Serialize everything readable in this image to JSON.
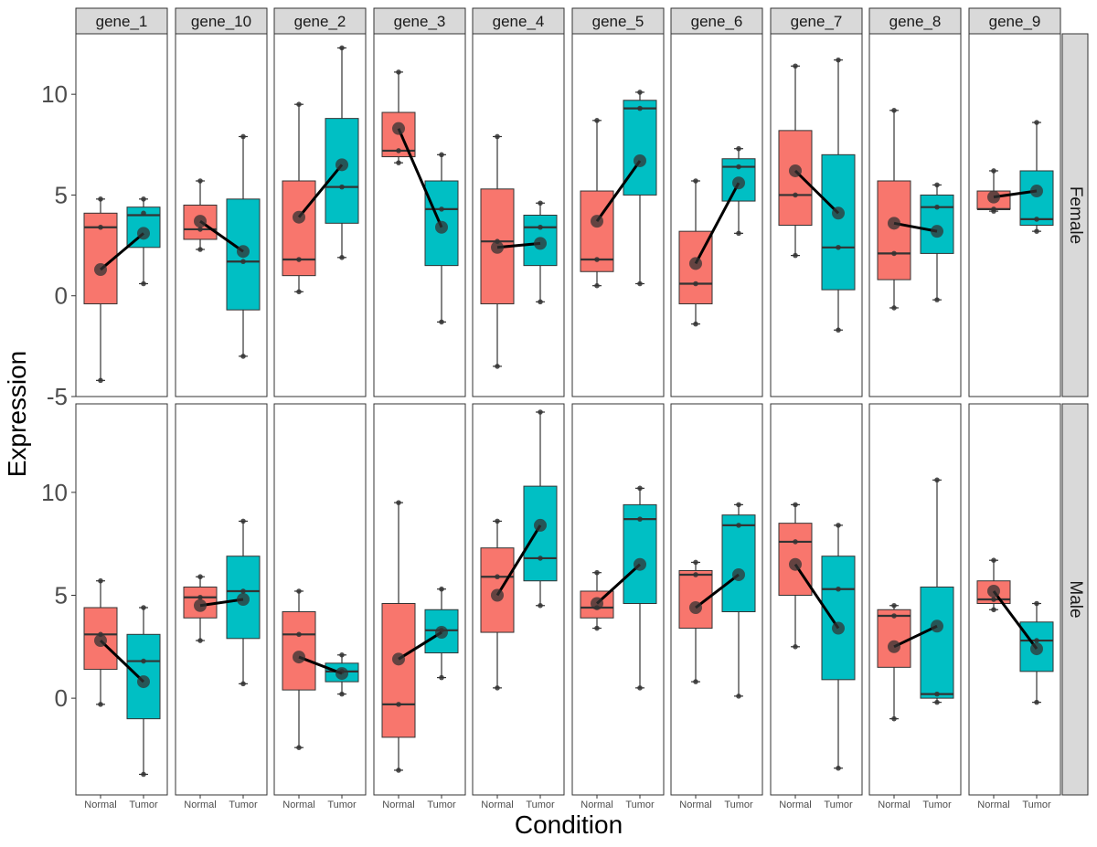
{
  "chart_data": {
    "type": "boxplot",
    "xlabel": "Condition",
    "ylabel": "Expression",
    "categories": [
      "Normal",
      "Tumor"
    ],
    "genes": [
      "gene_1",
      "gene_10",
      "gene_2",
      "gene_3",
      "gene_4",
      "gene_5",
      "gene_6",
      "gene_7",
      "gene_8",
      "gene_9"
    ],
    "rows": [
      "Female",
      "Male"
    ],
    "y_ticks_female": [
      -5,
      0,
      5,
      10
    ],
    "y_ticks_male": [
      0,
      5,
      10
    ],
    "ylim_female": [
      -5,
      13
    ],
    "ylim_male": [
      -4.7,
      14.3
    ],
    "grid": false,
    "colors": {
      "Normal": "#F8766D",
      "Tumor": "#00BFC4",
      "mean_line": "#000000",
      "strip_bg": "#D9D9D9"
    },
    "panels": [
      {
        "row": "Female",
        "gene": "gene_1",
        "groups": [
          {
            "cond": "Normal",
            "q1": -0.4,
            "median": 3.4,
            "q3": 4.1,
            "min": -4.2,
            "max": 4.8,
            "mean": 1.3,
            "points": [
              -4.2,
              3.4,
              4.8
            ]
          },
          {
            "cond": "Tumor",
            "q1": 2.4,
            "median": 4.0,
            "q3": 4.4,
            "min": 0.6,
            "max": 4.8,
            "mean": 3.1,
            "points": [
              0.6,
              4.1,
              4.8
            ]
          }
        ]
      },
      {
        "row": "Female",
        "gene": "gene_10",
        "groups": [
          {
            "cond": "Normal",
            "q1": 2.8,
            "median": 3.3,
            "q3": 4.5,
            "min": 2.3,
            "max": 5.7,
            "mean": 3.7,
            "points": [
              2.3,
              3.3,
              5.7
            ]
          },
          {
            "cond": "Tumor",
            "q1": -0.7,
            "median": 1.7,
            "q3": 4.8,
            "min": -3.0,
            "max": 7.9,
            "mean": 2.2,
            "points": [
              -3.0,
              1.7,
              7.9
            ]
          }
        ]
      },
      {
        "row": "Female",
        "gene": "gene_2",
        "groups": [
          {
            "cond": "Normal",
            "q1": 1.0,
            "median": 1.8,
            "q3": 5.7,
            "min": 0.2,
            "max": 9.5,
            "mean": 3.9,
            "points": [
              0.2,
              1.8,
              9.5
            ]
          },
          {
            "cond": "Tumor",
            "q1": 3.6,
            "median": 5.4,
            "q3": 8.8,
            "min": 1.9,
            "max": 12.3,
            "mean": 6.5,
            "points": [
              1.9,
              5.4,
              12.3
            ]
          }
        ]
      },
      {
        "row": "Female",
        "gene": "gene_3",
        "groups": [
          {
            "cond": "Normal",
            "q1": 6.9,
            "median": 7.2,
            "q3": 9.1,
            "min": 6.6,
            "max": 11.1,
            "mean": 8.3,
            "points": [
              6.6,
              7.2,
              11.1
            ]
          },
          {
            "cond": "Tumor",
            "q1": 1.5,
            "median": 4.3,
            "q3": 5.7,
            "min": -1.3,
            "max": 7.0,
            "mean": 3.4,
            "points": [
              -1.3,
              4.3,
              7.0
            ]
          }
        ]
      },
      {
        "row": "Female",
        "gene": "gene_4",
        "groups": [
          {
            "cond": "Normal",
            "q1": -0.4,
            "median": 2.7,
            "q3": 5.3,
            "min": -3.5,
            "max": 7.9,
            "mean": 2.4,
            "points": [
              -3.5,
              2.7,
              7.9
            ]
          },
          {
            "cond": "Tumor",
            "q1": 1.5,
            "median": 3.4,
            "q3": 4.0,
            "min": -0.3,
            "max": 4.6,
            "mean": 2.6,
            "points": [
              -0.3,
              3.4,
              4.6
            ]
          }
        ]
      },
      {
        "row": "Female",
        "gene": "gene_5",
        "groups": [
          {
            "cond": "Normal",
            "q1": 1.2,
            "median": 1.8,
            "q3": 5.2,
            "min": 0.5,
            "max": 8.7,
            "mean": 3.7,
            "points": [
              0.5,
              1.8,
              8.7
            ]
          },
          {
            "cond": "Tumor",
            "q1": 5.0,
            "median": 9.3,
            "q3": 9.7,
            "min": 0.6,
            "max": 10.1,
            "mean": 6.7,
            "points": [
              0.6,
              9.3,
              10.1
            ]
          }
        ]
      },
      {
        "row": "Female",
        "gene": "gene_6",
        "groups": [
          {
            "cond": "Normal",
            "q1": -0.4,
            "median": 0.6,
            "q3": 3.2,
            "min": -1.4,
            "max": 5.7,
            "mean": 1.6,
            "points": [
              -1.4,
              0.6,
              5.7
            ]
          },
          {
            "cond": "Tumor",
            "q1": 4.7,
            "median": 6.4,
            "q3": 6.8,
            "min": 3.1,
            "max": 7.3,
            "mean": 5.6,
            "points": [
              3.1,
              6.4,
              7.3
            ]
          }
        ]
      },
      {
        "row": "Female",
        "gene": "gene_7",
        "groups": [
          {
            "cond": "Normal",
            "q1": 3.5,
            "median": 5.0,
            "q3": 8.2,
            "min": 2.0,
            "max": 11.4,
            "mean": 6.2,
            "points": [
              2.0,
              5.0,
              11.4
            ]
          },
          {
            "cond": "Tumor",
            "q1": 0.3,
            "median": 2.4,
            "q3": 7.0,
            "min": -1.7,
            "max": 11.7,
            "mean": 4.1,
            "points": [
              -1.7,
              2.4,
              11.7
            ]
          }
        ]
      },
      {
        "row": "Female",
        "gene": "gene_8",
        "groups": [
          {
            "cond": "Normal",
            "q1": 0.8,
            "median": 2.1,
            "q3": 5.7,
            "min": -0.6,
            "max": 9.2,
            "mean": 3.6,
            "points": [
              -0.6,
              2.1,
              9.2
            ]
          },
          {
            "cond": "Tumor",
            "q1": 2.1,
            "median": 4.4,
            "q3": 5.0,
            "min": -0.2,
            "max": 5.5,
            "mean": 3.2,
            "points": [
              -0.2,
              4.4,
              5.5
            ]
          }
        ]
      },
      {
        "row": "Female",
        "gene": "gene_9",
        "groups": [
          {
            "cond": "Normal",
            "q1": 4.3,
            "median": 4.3,
            "q3": 5.2,
            "min": 4.2,
            "max": 6.2,
            "mean": 4.9,
            "points": [
              4.2,
              4.3,
              6.2
            ]
          },
          {
            "cond": "Tumor",
            "q1": 3.5,
            "median": 3.8,
            "q3": 6.2,
            "min": 3.2,
            "max": 8.6,
            "mean": 5.2,
            "points": [
              3.2,
              3.8,
              8.6
            ]
          }
        ]
      },
      {
        "row": "Male",
        "gene": "gene_1",
        "groups": [
          {
            "cond": "Normal",
            "q1": 1.4,
            "median": 3.1,
            "q3": 4.4,
            "min": -0.3,
            "max": 5.7,
            "mean": 2.8,
            "points": [
              -0.3,
              3.1,
              5.7
            ]
          },
          {
            "cond": "Tumor",
            "q1": -1.0,
            "median": 1.8,
            "q3": 3.1,
            "min": -3.7,
            "max": 4.4,
            "mean": 0.8,
            "points": [
              -3.7,
              1.8,
              4.4
            ]
          }
        ]
      },
      {
        "row": "Male",
        "gene": "gene_10",
        "groups": [
          {
            "cond": "Normal",
            "q1": 3.9,
            "median": 4.9,
            "q3": 5.4,
            "min": 2.8,
            "max": 5.9,
            "mean": 4.5,
            "points": [
              2.8,
              4.9,
              5.9
            ]
          },
          {
            "cond": "Tumor",
            "q1": 2.9,
            "median": 5.2,
            "q3": 6.9,
            "min": 0.7,
            "max": 8.6,
            "mean": 4.8,
            "points": [
              0.7,
              5.2,
              8.6
            ]
          }
        ]
      },
      {
        "row": "Male",
        "gene": "gene_2",
        "groups": [
          {
            "cond": "Normal",
            "q1": 0.4,
            "median": 3.1,
            "q3": 4.2,
            "min": -2.4,
            "max": 5.2,
            "mean": 2.0,
            "points": [
              -2.4,
              3.1,
              5.2
            ]
          },
          {
            "cond": "Tumor",
            "q1": 0.8,
            "median": 1.3,
            "q3": 1.7,
            "min": 0.2,
            "max": 2.1,
            "mean": 1.2,
            "points": [
              0.2,
              1.3,
              2.1
            ]
          }
        ]
      },
      {
        "row": "Male",
        "gene": "gene_3",
        "groups": [
          {
            "cond": "Normal",
            "q1": -1.9,
            "median": -0.3,
            "q3": 4.6,
            "min": -3.5,
            "max": 9.5,
            "mean": 1.9,
            "points": [
              -3.5,
              -0.3,
              9.5
            ]
          },
          {
            "cond": "Tumor",
            "q1": 2.2,
            "median": 3.3,
            "q3": 4.3,
            "min": 1.0,
            "max": 5.3,
            "mean": 3.2,
            "points": [
              1.0,
              3.3,
              5.3
            ]
          }
        ]
      },
      {
        "row": "Male",
        "gene": "gene_4",
        "groups": [
          {
            "cond": "Normal",
            "q1": 3.2,
            "median": 5.9,
            "q3": 7.3,
            "min": 0.5,
            "max": 8.6,
            "mean": 5.0,
            "points": [
              0.5,
              5.9,
              8.6
            ]
          },
          {
            "cond": "Tumor",
            "q1": 5.7,
            "median": 6.8,
            "q3": 10.3,
            "min": 4.5,
            "max": 13.9,
            "mean": 8.4,
            "points": [
              4.5,
              6.8,
              13.9
            ]
          }
        ]
      },
      {
        "row": "Male",
        "gene": "gene_5",
        "groups": [
          {
            "cond": "Normal",
            "q1": 3.9,
            "median": 4.4,
            "q3": 5.2,
            "min": 3.4,
            "max": 6.1,
            "mean": 4.6,
            "points": [
              3.4,
              4.4,
              6.1
            ]
          },
          {
            "cond": "Tumor",
            "q1": 4.6,
            "median": 8.7,
            "q3": 9.4,
            "min": 0.5,
            "max": 10.2,
            "mean": 6.5,
            "points": [
              0.5,
              8.7,
              10.2
            ]
          }
        ]
      },
      {
        "row": "Male",
        "gene": "gene_6",
        "groups": [
          {
            "cond": "Normal",
            "q1": 3.4,
            "median": 6.0,
            "q3": 6.2,
            "min": 0.8,
            "max": 6.6,
            "mean": 4.4,
            "points": [
              0.8,
              6.0,
              6.6
            ]
          },
          {
            "cond": "Tumor",
            "q1": 4.2,
            "median": 8.4,
            "q3": 8.9,
            "min": 0.1,
            "max": 9.4,
            "mean": 6.0,
            "points": [
              0.1,
              8.4,
              9.4
            ]
          }
        ]
      },
      {
        "row": "Male",
        "gene": "gene_7",
        "groups": [
          {
            "cond": "Normal",
            "q1": 5.0,
            "median": 7.6,
            "q3": 8.5,
            "min": 2.5,
            "max": 9.4,
            "mean": 6.5,
            "points": [
              2.5,
              7.6,
              9.4
            ]
          },
          {
            "cond": "Tumor",
            "q1": 0.9,
            "median": 5.3,
            "q3": 6.9,
            "min": -3.4,
            "max": 8.4,
            "mean": 3.4,
            "points": [
              -3.4,
              5.3,
              8.4
            ]
          }
        ]
      },
      {
        "row": "Male",
        "gene": "gene_8",
        "groups": [
          {
            "cond": "Normal",
            "q1": 1.5,
            "median": 4.0,
            "q3": 4.3,
            "min": -1.0,
            "max": 4.5,
            "mean": 2.5,
            "points": [
              -1.0,
              4.0,
              4.5
            ]
          },
          {
            "cond": "Tumor",
            "q1": 0.0,
            "median": 0.2,
            "q3": 5.4,
            "min": -0.2,
            "max": 10.6,
            "mean": 3.5,
            "points": [
              -0.2,
              0.2,
              10.6
            ]
          }
        ]
      },
      {
        "row": "Male",
        "gene": "gene_9",
        "groups": [
          {
            "cond": "Normal",
            "q1": 4.6,
            "median": 4.8,
            "q3": 5.7,
            "min": 4.3,
            "max": 6.7,
            "mean": 5.2,
            "points": [
              4.3,
              4.8,
              6.7
            ]
          },
          {
            "cond": "Tumor",
            "q1": 1.3,
            "median": 2.8,
            "q3": 3.7,
            "min": -0.2,
            "max": 4.6,
            "mean": 2.4,
            "points": [
              -0.2,
              2.8,
              4.6
            ]
          }
        ]
      }
    ]
  }
}
